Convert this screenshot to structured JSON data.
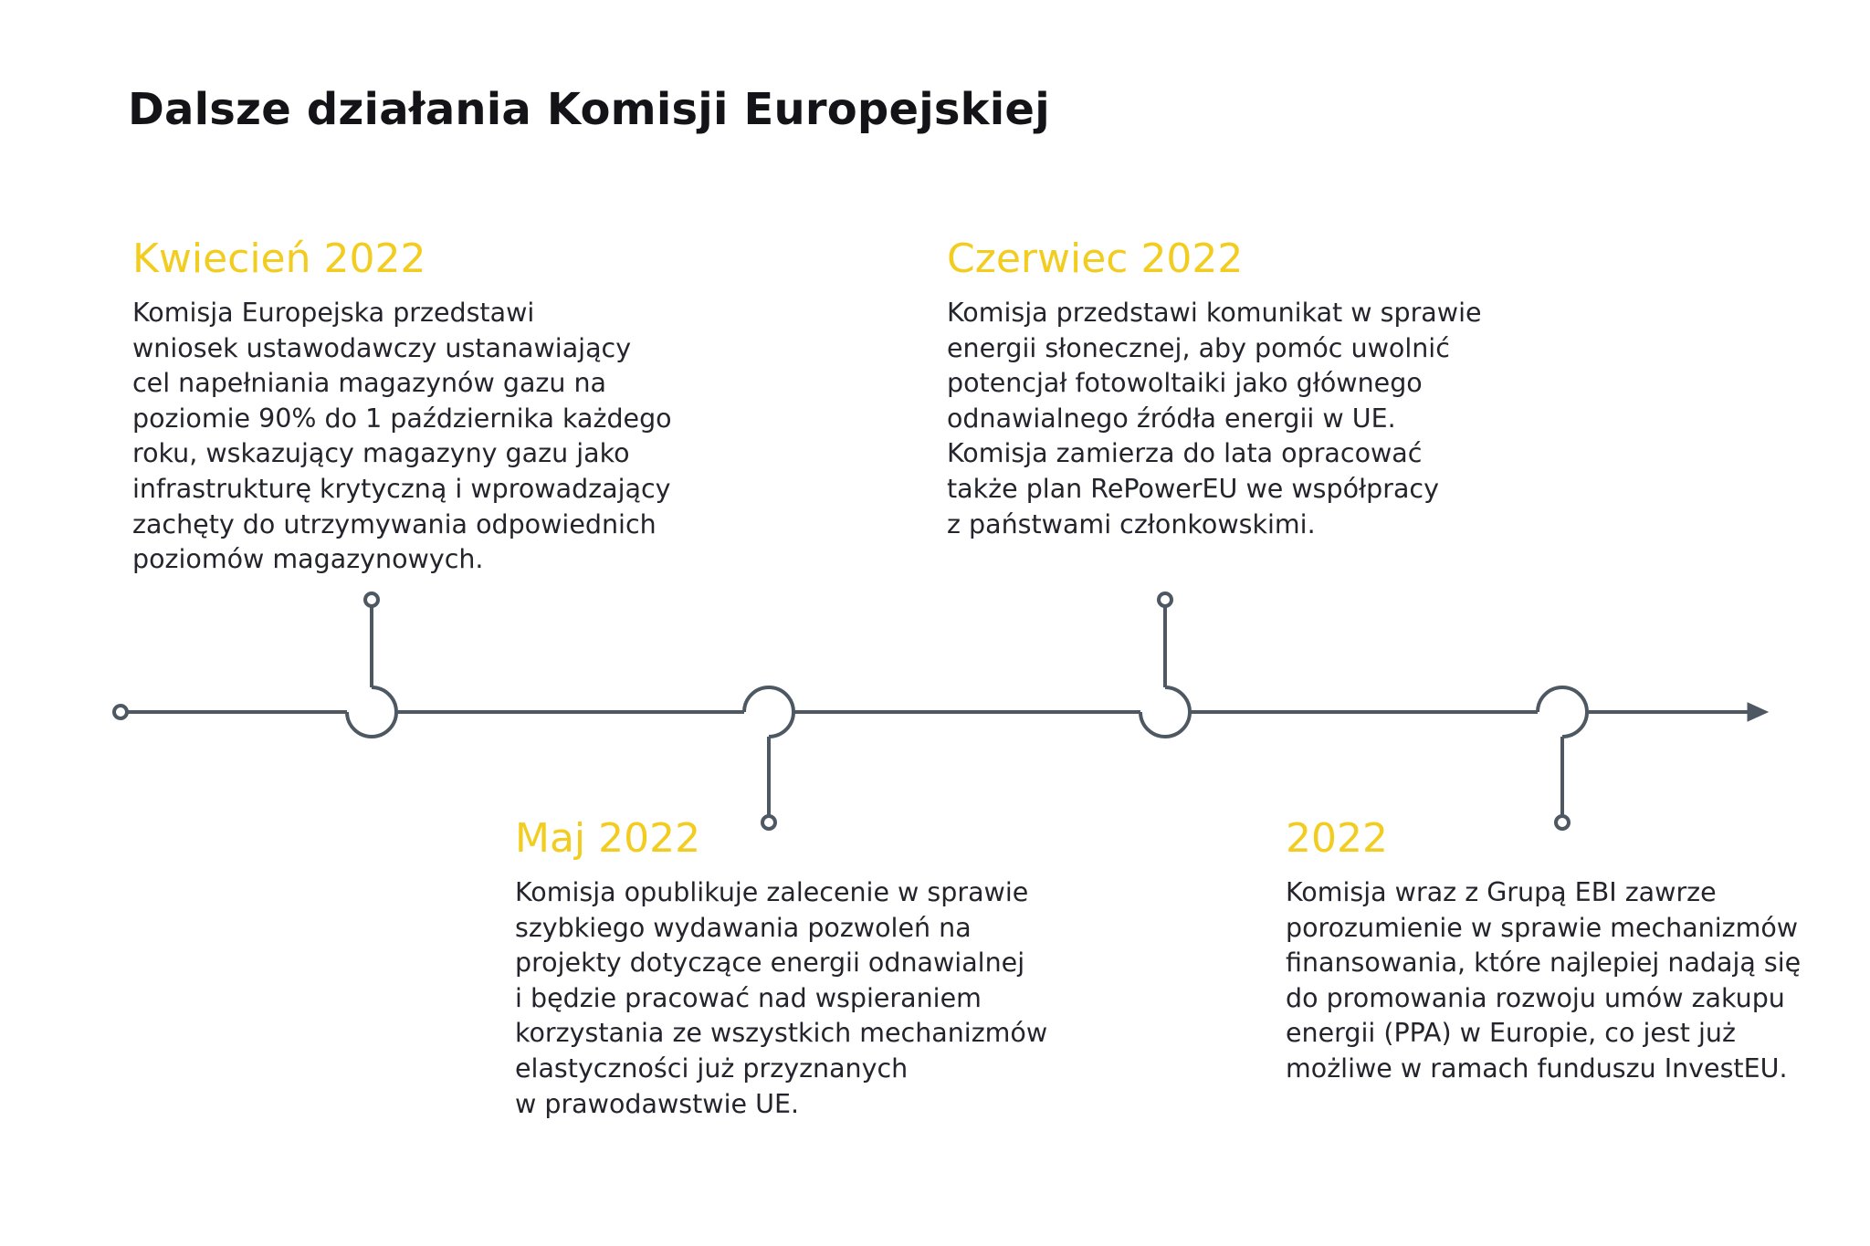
{
  "title": "Dalsze działania Komisji Europejskiej",
  "colors": {
    "heading": "#f2cc1e",
    "line": "#4d5863",
    "text": "#24242c"
  },
  "events": [
    {
      "date": "Kwiecień 2022",
      "text": "Komisja Europejska przedstawi\nwniosek ustawodawczy ustanawiający\ncel napełniania magazynów gazu na\npoziomie 90% do 1 października każdego\nroku, wskazujący magazyny gazu jako\ninfrastrukturę krytyczną i wprowadzający\nzachęty do utrzymywania odpowiednich\npoziomów magazynowych."
    },
    {
      "date": "Maj 2022",
      "text": "Komisja opublikuje zalecenie w sprawie\nszybkiego wydawania pozwoleń na\nprojekty dotyczące energii odnawialnej\ni będzie pracować nad wspieraniem\nkorzystania ze wszystkich mechanizmów\nelastyczności już przyznanych\nw prawodawstwie UE."
    },
    {
      "date": "Czerwiec 2022",
      "text": "Komisja przedstawi komunikat w sprawie\nenergii słonecznej, aby pomóc uwolnić\npotencjał fotowoltaiki jako głównego\nodnawialnego źródła energii w UE.\nKomisja zamierza do lata opracować\ntakże plan RePowerEU we współpracy\nz państwami członkowskimi."
    },
    {
      "date": "2022",
      "text": "Komisja wraz z Grupą EBI zawrze\nporozumienie w sprawie mechanizmów\nfinansowania, które najlepiej nadają się\ndo promowania rozwoju umów zakupu\nenergii (PPA) w Europie, co jest już\nmożliwe w ramach funduszu InvestEU."
    }
  ]
}
